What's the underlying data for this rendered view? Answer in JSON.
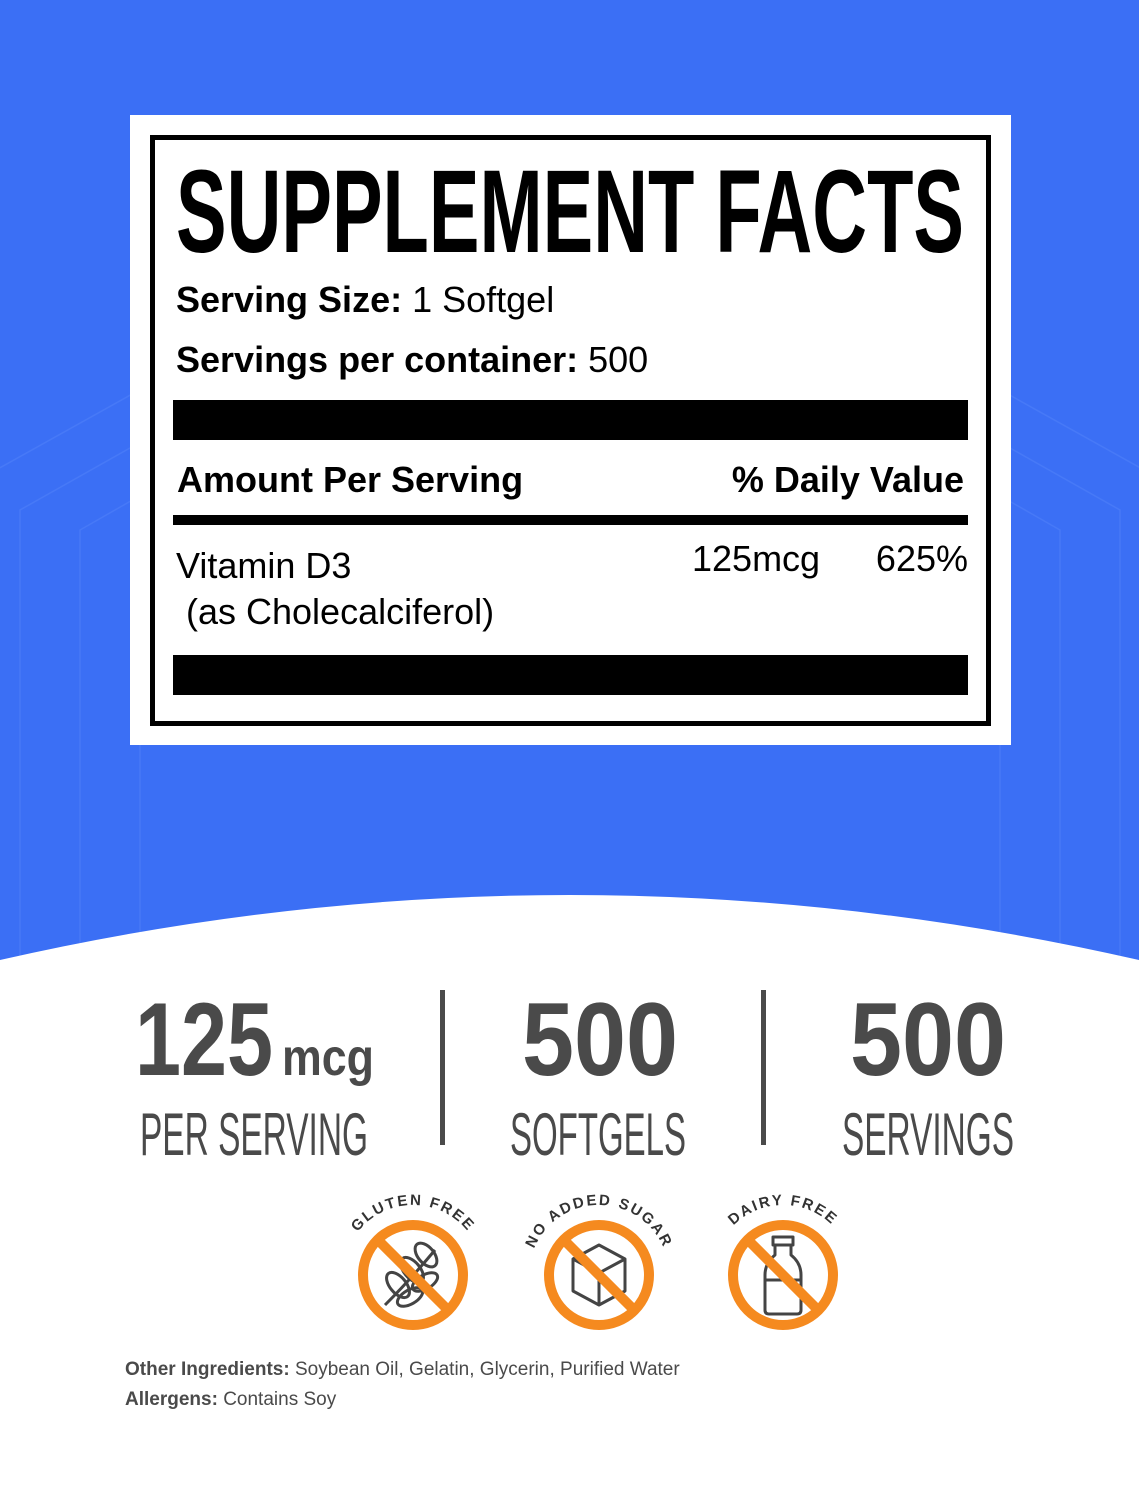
{
  "colors": {
    "background_blue": "#3b6ff5",
    "badge_orange": "#f58a1f",
    "stat_gray": "#4a4a4a"
  },
  "facts": {
    "title": "SUPPLEMENT FACTS",
    "serving_size_label": "Serving Size:",
    "serving_size_value": "1 Softgel",
    "servings_label": "Servings per container:",
    "servings_value": "500",
    "amount_header": "Amount Per Serving",
    "dv_header": "% Daily Value",
    "ingredients": [
      {
        "name": "Vitamin D3",
        "detail": "(as Cholecalciferol)",
        "amount": "125mcg",
        "dv": "625%"
      }
    ]
  },
  "stats": [
    {
      "number": "125",
      "unit": "mcg",
      "label": "PER SERVING"
    },
    {
      "number": "500",
      "unit": "",
      "label": "SOFTGELS"
    },
    {
      "number": "500",
      "unit": "",
      "label": "SERVINGS"
    }
  ],
  "badges": [
    {
      "label": "GLUTEN FREE",
      "icon": "wheat-icon"
    },
    {
      "label": "NO ADDED SUGAR",
      "icon": "sugar-cube-icon"
    },
    {
      "label": "DAIRY FREE",
      "icon": "milk-bottle-icon"
    }
  ],
  "footer": {
    "other_label": "Other Ingredients:",
    "other_value": "Soybean Oil, Gelatin, Glycerin, Purified Water",
    "allergens_label": "Allergens:",
    "allergens_value": "Contains Soy"
  }
}
